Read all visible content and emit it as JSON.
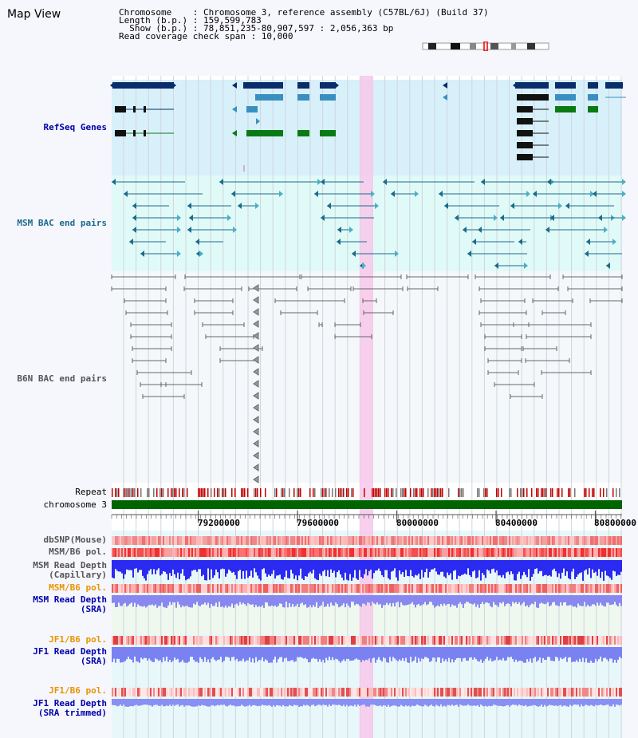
{
  "header": {
    "view_title": "Map View",
    "info_lines": [
      "Chromosome    : Chromosome 3, reference assembly (C57BL/6J) (Build 37)",
      "Length (b.p.) : 159,599,783",
      "  Show (b.p.) : 78,851,235-80,907,597 : 2,056,363 bp",
      "Read coverage check span : 10,000"
    ]
  },
  "axis": {
    "start": 78851235,
    "end": 80907597,
    "ticks": [
      "79200000",
      "79600000",
      "80000000",
      "80400000",
      "80800000"
    ],
    "highlight_range": [
      79850000,
      79905000
    ]
  },
  "tracks": {
    "refseq_label": "RefSeq Genes",
    "msm_bac_label": "MSM BAC end pairs",
    "b6n_bac_label": "B6N BAC end pairs",
    "repeat_label": "Repeat",
    "chromosome_label": "chromosome 3",
    "dbsnp_label": "dbSNP(Mouse)",
    "msm_b6_pol_label": "MSM/B6 pol.",
    "msm_depth_cap_label": "MSM Read Depth\n(Capillary)",
    "msm_b6_pol2_label": "MSM/B6 pol.",
    "msm_depth_sra_label": "MSM Read Depth\n(SRA)",
    "jf1_b6_pol_label": "JF1/B6 pol.",
    "jf1_depth_sra_label": "JF1 Read Depth\n(SRA)",
    "jf1_b6_pol2_label": "JF1/B6 pol.",
    "jf1_depth_trim_label": "JF1 Read Depth\n(SRA trimmed)"
  },
  "colors": {
    "refseq_bg": "#d8f0fa",
    "msm_bac_bg": "#e0faf8",
    "gene_navy": "#0a2d6b",
    "gene_steel": "#3a8fc0",
    "gene_green": "#0a7a14",
    "msm_bac": "#1b6b8a",
    "b6n_bac": "#555555",
    "chromosome": "#006400",
    "depth_blue": "#2a2af0",
    "depth_light": "#7a82f2",
    "highlight": "#f7c8ea",
    "label_blue": "#0000aa",
    "label_orange": "#e69500"
  }
}
